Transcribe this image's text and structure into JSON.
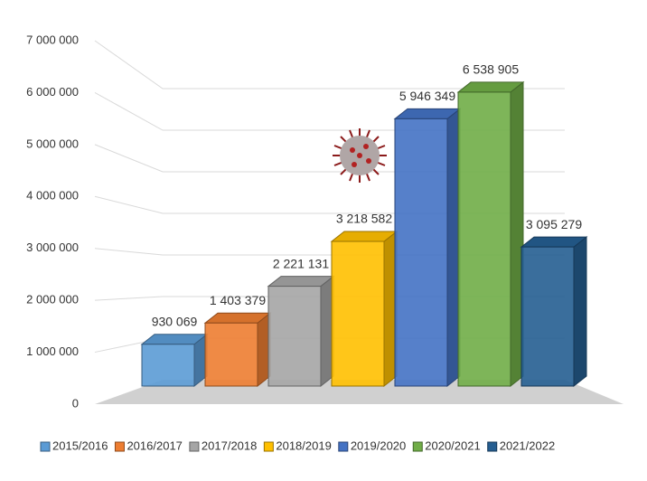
{
  "chart_data": {
    "type": "bar3d",
    "categories": [
      "2015/2016",
      "2016/2017",
      "2017/2018",
      "2018/2019",
      "2019/2020",
      "2020/2021",
      "2021/2022"
    ],
    "values": [
      930069,
      1403379,
      2221131,
      3218582,
      5946349,
      6538905,
      3095279
    ],
    "value_labels": [
      "930 069",
      "1 403 379",
      "2 221 131",
      "3 218 582",
      "5 946 349",
      "6 538 905",
      "3 095 279"
    ],
    "colors": [
      "#5b9bd5",
      "#ed7d31",
      "#a5a5a5",
      "#ffc000",
      "#4472c4",
      "#70ad47",
      "#255e91"
    ],
    "ylim": [
      0,
      7000000
    ],
    "yticks": [
      0,
      {
        "value": 1000000,
        "label": "1 000 000"
      },
      {
        "value": 2000000,
        "label": "2 000 000"
      },
      {
        "value": 3000000,
        "label": "3 000 000"
      },
      {
        "value": 4000000,
        "label": "4 000 000"
      },
      {
        "value": 5000000,
        "label": "5 000 000"
      },
      {
        "value": 6000000,
        "label": "6 000 000"
      },
      {
        "value": 7000000,
        "label": "7 000 000"
      }
    ],
    "grid": true,
    "legend": "bottom"
  }
}
